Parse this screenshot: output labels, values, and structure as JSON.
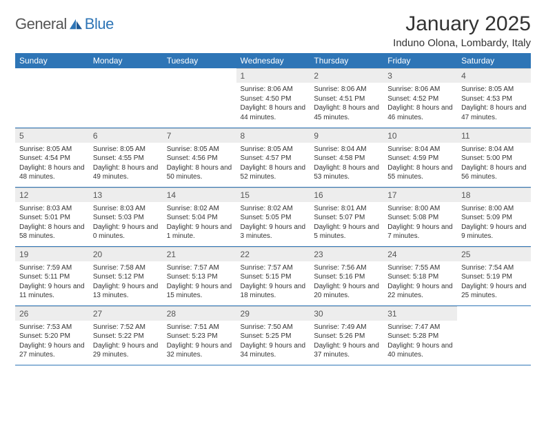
{
  "logo": {
    "general": "General",
    "blue": "Blue"
  },
  "header": {
    "month_title": "January 2025",
    "location": "Induno Olona, Lombardy, Italy"
  },
  "columns": [
    "Sunday",
    "Monday",
    "Tuesday",
    "Wednesday",
    "Thursday",
    "Friday",
    "Saturday"
  ],
  "style": {
    "header_bg": "#2e75b6",
    "header_fg": "#ffffff",
    "daynum_bg": "#ededed",
    "rule_color": "#2e75b6",
    "title_fontsize": 30,
    "location_fontsize": 15,
    "col_header_fontsize": 12,
    "daynum_fontsize": 12,
    "body_fontsize": 10
  },
  "weeks": [
    [
      null,
      null,
      null,
      {
        "n": "1",
        "sr": "8:06 AM",
        "ss": "4:50 PM",
        "dl": "8 hours and 44 minutes."
      },
      {
        "n": "2",
        "sr": "8:06 AM",
        "ss": "4:51 PM",
        "dl": "8 hours and 45 minutes."
      },
      {
        "n": "3",
        "sr": "8:06 AM",
        "ss": "4:52 PM",
        "dl": "8 hours and 46 minutes."
      },
      {
        "n": "4",
        "sr": "8:05 AM",
        "ss": "4:53 PM",
        "dl": "8 hours and 47 minutes."
      }
    ],
    [
      {
        "n": "5",
        "sr": "8:05 AM",
        "ss": "4:54 PM",
        "dl": "8 hours and 48 minutes."
      },
      {
        "n": "6",
        "sr": "8:05 AM",
        "ss": "4:55 PM",
        "dl": "8 hours and 49 minutes."
      },
      {
        "n": "7",
        "sr": "8:05 AM",
        "ss": "4:56 PM",
        "dl": "8 hours and 50 minutes."
      },
      {
        "n": "8",
        "sr": "8:05 AM",
        "ss": "4:57 PM",
        "dl": "8 hours and 52 minutes."
      },
      {
        "n": "9",
        "sr": "8:04 AM",
        "ss": "4:58 PM",
        "dl": "8 hours and 53 minutes."
      },
      {
        "n": "10",
        "sr": "8:04 AM",
        "ss": "4:59 PM",
        "dl": "8 hours and 55 minutes."
      },
      {
        "n": "11",
        "sr": "8:04 AM",
        "ss": "5:00 PM",
        "dl": "8 hours and 56 minutes."
      }
    ],
    [
      {
        "n": "12",
        "sr": "8:03 AM",
        "ss": "5:01 PM",
        "dl": "8 hours and 58 minutes."
      },
      {
        "n": "13",
        "sr": "8:03 AM",
        "ss": "5:03 PM",
        "dl": "9 hours and 0 minutes."
      },
      {
        "n": "14",
        "sr": "8:02 AM",
        "ss": "5:04 PM",
        "dl": "9 hours and 1 minute."
      },
      {
        "n": "15",
        "sr": "8:02 AM",
        "ss": "5:05 PM",
        "dl": "9 hours and 3 minutes."
      },
      {
        "n": "16",
        "sr": "8:01 AM",
        "ss": "5:07 PM",
        "dl": "9 hours and 5 minutes."
      },
      {
        "n": "17",
        "sr": "8:00 AM",
        "ss": "5:08 PM",
        "dl": "9 hours and 7 minutes."
      },
      {
        "n": "18",
        "sr": "8:00 AM",
        "ss": "5:09 PM",
        "dl": "9 hours and 9 minutes."
      }
    ],
    [
      {
        "n": "19",
        "sr": "7:59 AM",
        "ss": "5:11 PM",
        "dl": "9 hours and 11 minutes."
      },
      {
        "n": "20",
        "sr": "7:58 AM",
        "ss": "5:12 PM",
        "dl": "9 hours and 13 minutes."
      },
      {
        "n": "21",
        "sr": "7:57 AM",
        "ss": "5:13 PM",
        "dl": "9 hours and 15 minutes."
      },
      {
        "n": "22",
        "sr": "7:57 AM",
        "ss": "5:15 PM",
        "dl": "9 hours and 18 minutes."
      },
      {
        "n": "23",
        "sr": "7:56 AM",
        "ss": "5:16 PM",
        "dl": "9 hours and 20 minutes."
      },
      {
        "n": "24",
        "sr": "7:55 AM",
        "ss": "5:18 PM",
        "dl": "9 hours and 22 minutes."
      },
      {
        "n": "25",
        "sr": "7:54 AM",
        "ss": "5:19 PM",
        "dl": "9 hours and 25 minutes."
      }
    ],
    [
      {
        "n": "26",
        "sr": "7:53 AM",
        "ss": "5:20 PM",
        "dl": "9 hours and 27 minutes."
      },
      {
        "n": "27",
        "sr": "7:52 AM",
        "ss": "5:22 PM",
        "dl": "9 hours and 29 minutes."
      },
      {
        "n": "28",
        "sr": "7:51 AM",
        "ss": "5:23 PM",
        "dl": "9 hours and 32 minutes."
      },
      {
        "n": "29",
        "sr": "7:50 AM",
        "ss": "5:25 PM",
        "dl": "9 hours and 34 minutes."
      },
      {
        "n": "30",
        "sr": "7:49 AM",
        "ss": "5:26 PM",
        "dl": "9 hours and 37 minutes."
      },
      {
        "n": "31",
        "sr": "7:47 AM",
        "ss": "5:28 PM",
        "dl": "9 hours and 40 minutes."
      },
      null
    ]
  ],
  "labels": {
    "sunrise": "Sunrise: ",
    "sunset": "Sunset: ",
    "daylight": "Daylight: "
  }
}
